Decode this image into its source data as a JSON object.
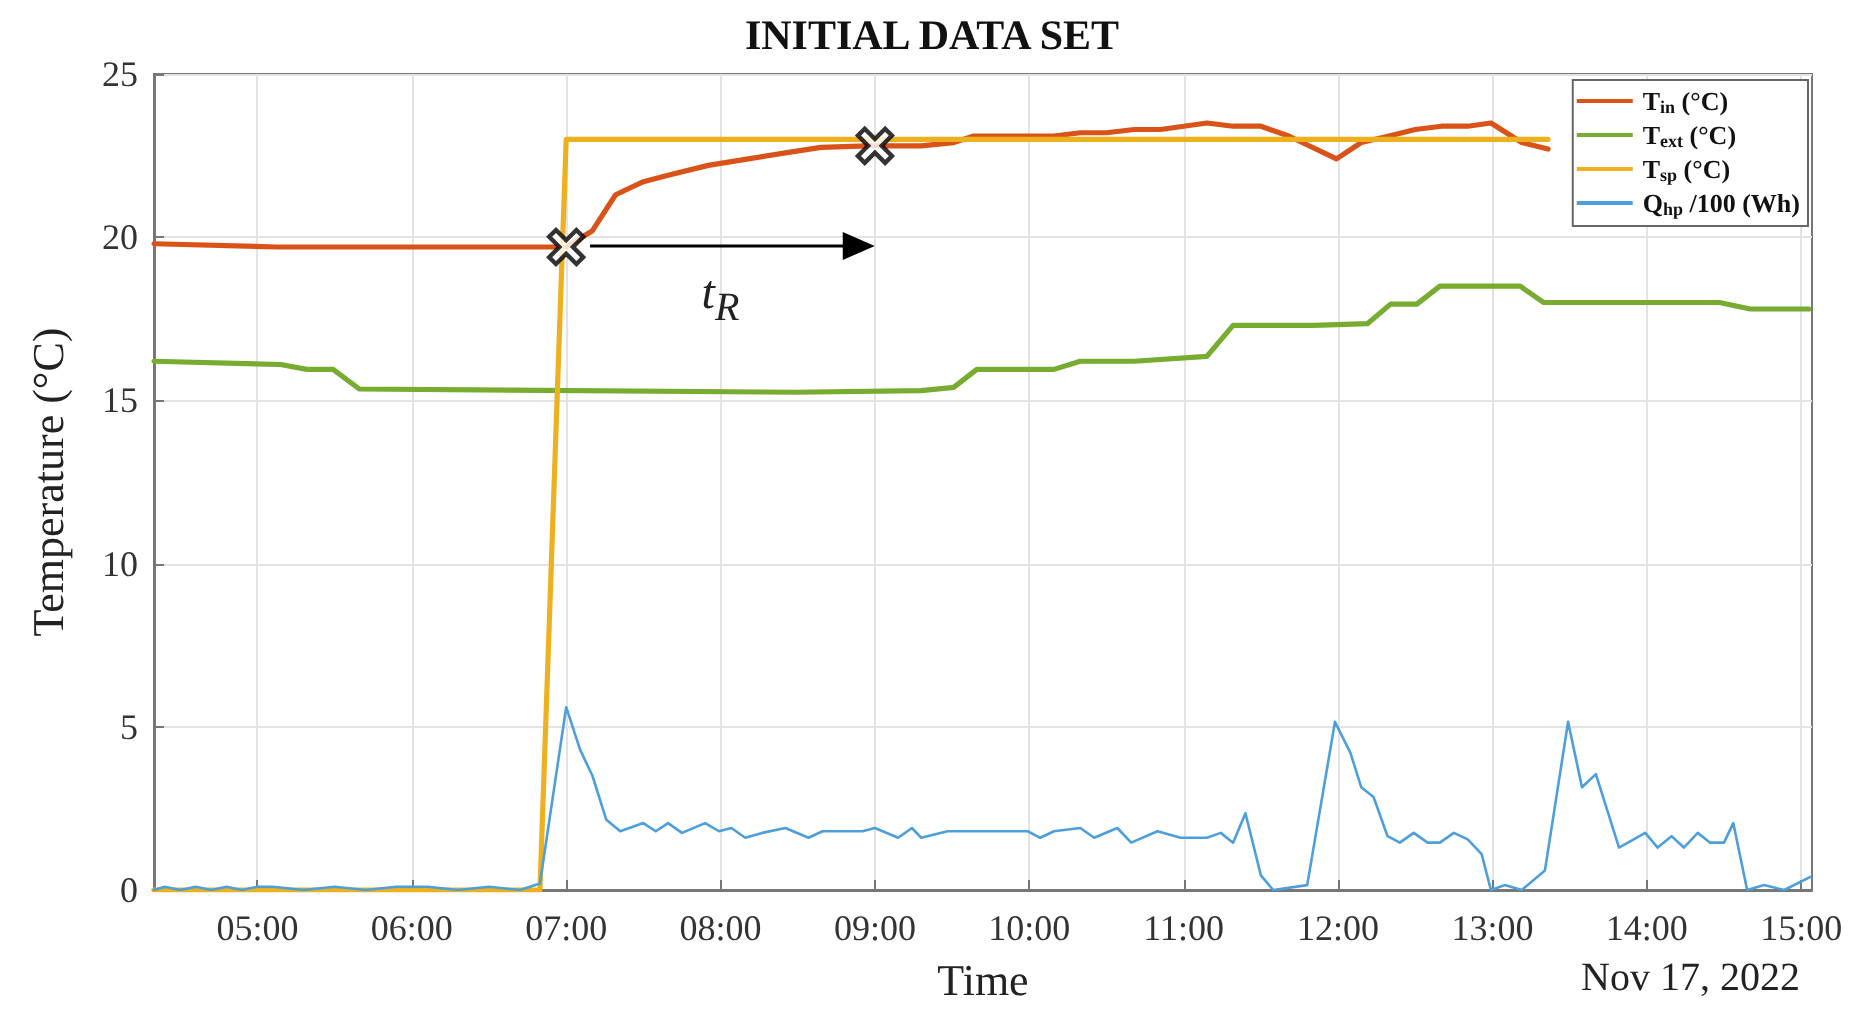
{
  "chart_data": {
    "type": "line",
    "title": "INITIAL DATA SET",
    "xlabel": "Time",
    "ylabel": "Temperature (°C)",
    "xlim": [
      4.33,
      15.07
    ],
    "ylim": [
      0,
      25
    ],
    "xticks": [
      {
        "value": 5,
        "label": "05:00"
      },
      {
        "value": 6,
        "label": "06:00"
      },
      {
        "value": 7,
        "label": "07:00"
      },
      {
        "value": 8,
        "label": "08:00"
      },
      {
        "value": 9,
        "label": "09:00"
      },
      {
        "value": 10,
        "label": "10:00"
      },
      {
        "value": 11,
        "label": "11:00"
      },
      {
        "value": 12,
        "label": "12:00"
      },
      {
        "value": 13,
        "label": "13:00"
      },
      {
        "value": 14,
        "label": "14:00"
      },
      {
        "value": 15,
        "label": "15:00"
      }
    ],
    "yticks": [
      0,
      5,
      10,
      15,
      20,
      25
    ],
    "grid": true,
    "legend": "top right",
    "annotations": [
      "t$_{R}$",
      "Nov 17, 2022"
    ],
    "series": [
      {
        "name": "T$_{in}$ (°C)",
        "color": "#d95319",
        "x": [
          4.33,
          5.13,
          7.0,
          7.17,
          7.32,
          7.5,
          7.66,
          7.92,
          8.18,
          8.44,
          8.65,
          8.95,
          9.3,
          9.51,
          9.64,
          10.16,
          10.33,
          10.5,
          10.68,
          10.85,
          11.15,
          11.32,
          11.5,
          11.68,
          11.99,
          12.15,
          12.33,
          12.5,
          12.67,
          12.84,
          12.99,
          13.19,
          13.36
        ],
        "values": [
          19.8,
          19.7,
          19.7,
          20.2,
          21.3,
          21.7,
          21.9,
          22.2,
          22.4,
          22.6,
          22.75,
          22.8,
          22.8,
          22.9,
          23.1,
          23.1,
          23.2,
          23.2,
          23.3,
          23.3,
          23.5,
          23.4,
          23.4,
          23.1,
          22.4,
          22.9,
          23.1,
          23.3,
          23.4,
          23.4,
          23.5,
          22.9,
          22.7
        ]
      },
      {
        "name": "T$_{ext}$ (°C)",
        "color": "#77ac30",
        "x": [
          4.33,
          5.15,
          5.32,
          5.49,
          5.66,
          8.48,
          9.3,
          9.51,
          9.66,
          10.16,
          10.33,
          10.68,
          11.15,
          11.32,
          11.84,
          12.19,
          12.34,
          12.51,
          12.66,
          13.18,
          13.33,
          14.47,
          14.67,
          15.05
        ],
        "values": [
          16.2,
          16.1,
          15.95,
          15.95,
          15.35,
          15.25,
          15.3,
          15.4,
          15.95,
          15.95,
          16.2,
          16.2,
          16.35,
          17.3,
          17.3,
          17.35,
          17.95,
          17.95,
          18.5,
          18.5,
          18.0,
          18.0,
          17.8,
          17.8
        ]
      },
      {
        "name": "T$_{sp}$ (°C)",
        "color": "#edb120",
        "x": [
          4.33,
          6.83,
          7.0,
          13.36
        ],
        "values": [
          0,
          0,
          23,
          23
        ]
      },
      {
        "name": "Q$_{hp}$ /100 (Wh)",
        "color": "#4d9fdb",
        "x": [
          4.33,
          4.4,
          4.5,
          4.6,
          4.7,
          4.8,
          4.9,
          5.0,
          5.1,
          5.3,
          5.5,
          5.7,
          5.9,
          6.1,
          6.3,
          6.5,
          6.7,
          6.83,
          7.0,
          7.09,
          7.17,
          7.26,
          7.35,
          7.5,
          7.58,
          7.66,
          7.75,
          7.9,
          7.99,
          8.07,
          8.16,
          8.27,
          8.42,
          8.57,
          8.66,
          8.92,
          9.0,
          9.15,
          9.24,
          9.3,
          9.47,
          9.99,
          10.07,
          10.16,
          10.33,
          10.42,
          10.57,
          10.66,
          10.83,
          10.98,
          11.15,
          11.24,
          11.32,
          11.4,
          11.5,
          11.58,
          11.8,
          11.98,
          12.08,
          12.15,
          12.23,
          12.32,
          12.4,
          12.49,
          12.58,
          12.66,
          12.75,
          12.84,
          12.93,
          12.99,
          13.08,
          13.19,
          13.34,
          13.49,
          13.58,
          13.67,
          13.82,
          13.99,
          14.07,
          14.16,
          14.24,
          14.33,
          14.41,
          14.5,
          14.56,
          14.65,
          14.76,
          14.89,
          15.06
        ],
        "values": [
          0.0,
          0.1,
          0.0,
          0.1,
          0.0,
          0.1,
          0.0,
          0.1,
          0.1,
          0.0,
          0.1,
          0.0,
          0.1,
          0.1,
          0.0,
          0.1,
          0.0,
          0.2,
          5.6,
          4.3,
          3.5,
          2.15,
          1.8,
          2.05,
          1.8,
          2.05,
          1.75,
          2.05,
          1.8,
          1.9,
          1.6,
          1.75,
          1.9,
          1.6,
          1.8,
          1.8,
          1.9,
          1.6,
          1.9,
          1.6,
          1.8,
          1.8,
          1.6,
          1.8,
          1.9,
          1.6,
          1.9,
          1.45,
          1.8,
          1.6,
          1.6,
          1.75,
          1.45,
          2.35,
          0.45,
          0.0,
          0.15,
          5.15,
          4.2,
          3.15,
          2.85,
          1.65,
          1.45,
          1.75,
          1.45,
          1.45,
          1.75,
          1.55,
          1.1,
          0.0,
          0.15,
          0.0,
          0.6,
          5.15,
          3.15,
          3.55,
          1.3,
          1.75,
          1.3,
          1.65,
          1.3,
          1.75,
          1.45,
          1.45,
          2.05,
          0.0,
          0.15,
          0.0,
          0.4
        ]
      },
      {
        "type": "scatter",
        "marker": "cross",
        "color": "#000000",
        "x": [
          7.0,
          9.0
        ],
        "values": [
          19.7,
          22.8
        ]
      }
    ]
  }
}
